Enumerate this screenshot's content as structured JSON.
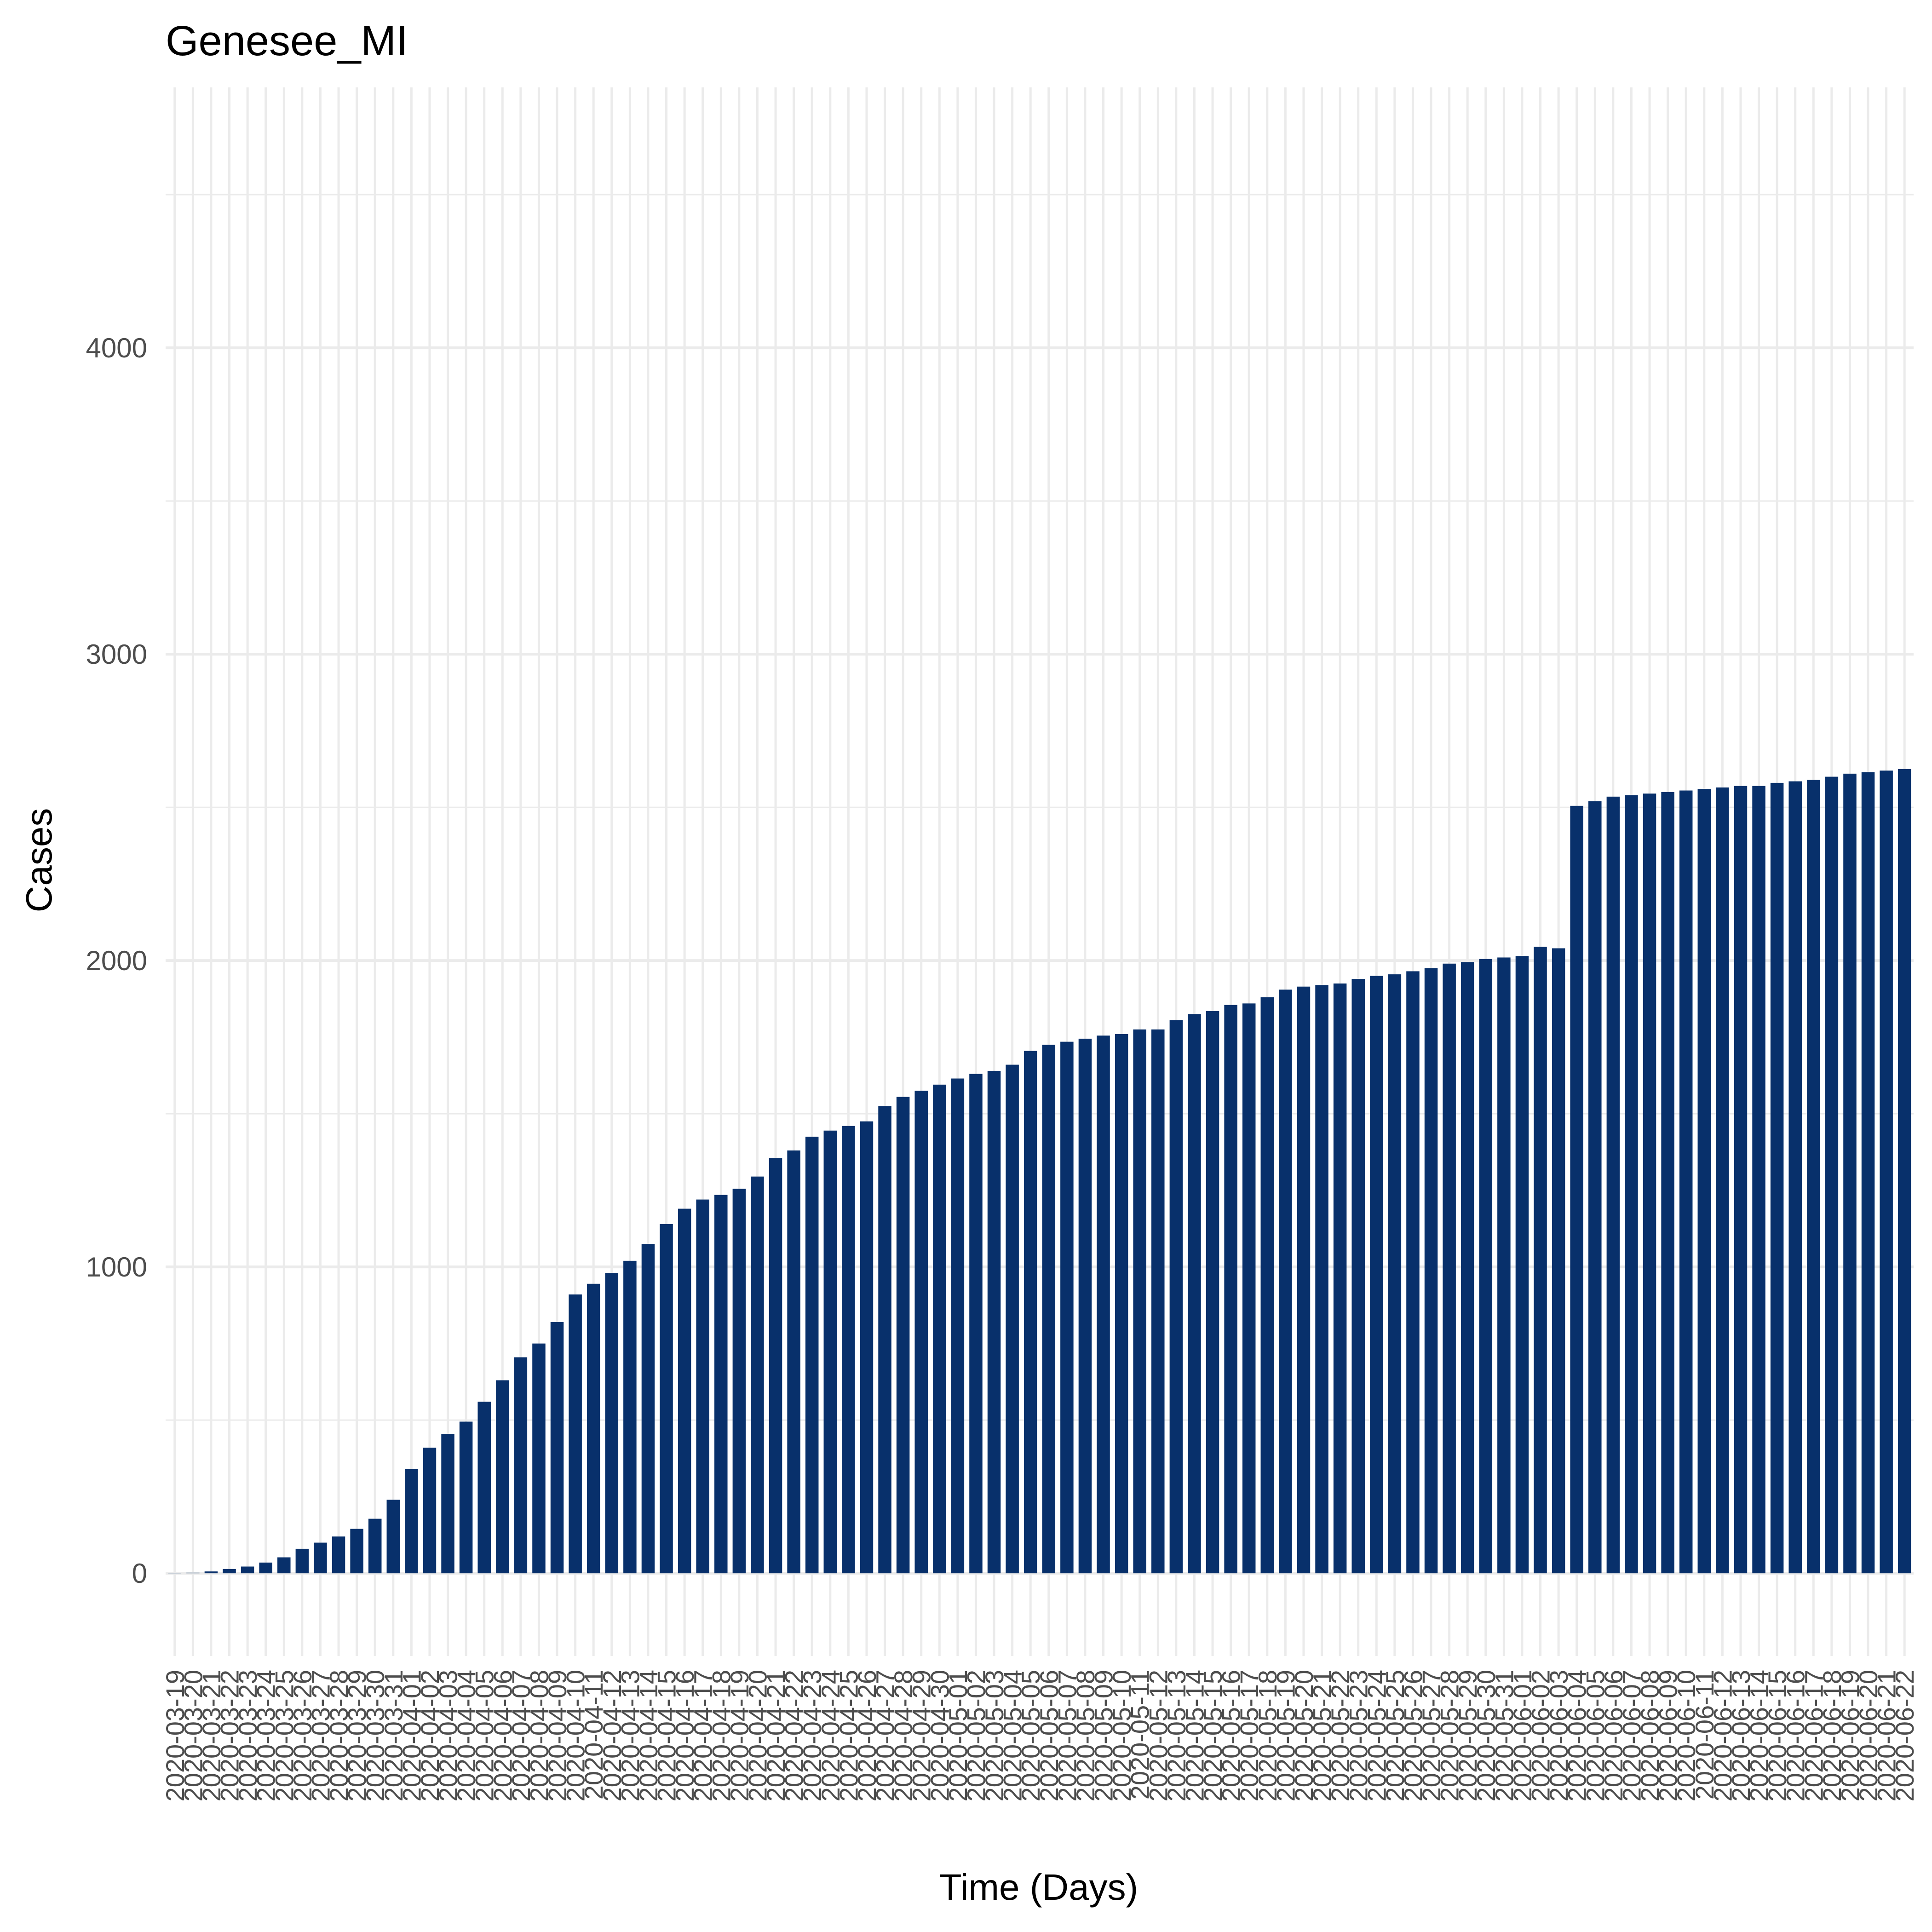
{
  "chart_data": {
    "type": "bar",
    "title": "Genesee_MI",
    "xlabel": "Time (Days)",
    "ylabel": "Cases",
    "ylim": [
      -270,
      4850
    ],
    "yticks": [
      0,
      1000,
      2000,
      3000,
      4000
    ],
    "grid": true,
    "bar_color": "#08306b",
    "background": "#ffffff",
    "grid_color": "#ebebeb",
    "categories": [
      "2020-03-19",
      "2020-03-20",
      "2020-03-21",
      "2020-03-22",
      "2020-03-23",
      "2020-03-24",
      "2020-03-25",
      "2020-03-26",
      "2020-03-27",
      "2020-03-28",
      "2020-03-29",
      "2020-03-30",
      "2020-03-31",
      "2020-04-01",
      "2020-04-02",
      "2020-04-03",
      "2020-04-04",
      "2020-04-05",
      "2020-04-06",
      "2020-04-07",
      "2020-04-08",
      "2020-04-09",
      "2020-04-10",
      "2020-04-11",
      "2020-04-12",
      "2020-04-13",
      "2020-04-14",
      "2020-04-15",
      "2020-04-16",
      "2020-04-17",
      "2020-04-18",
      "2020-04-19",
      "2020-04-20",
      "2020-04-21",
      "2020-04-22",
      "2020-04-23",
      "2020-04-24",
      "2020-04-25",
      "2020-04-26",
      "2020-04-27",
      "2020-04-28",
      "2020-04-29",
      "2020-04-30",
      "2020-05-01",
      "2020-05-02",
      "2020-05-03",
      "2020-05-04",
      "2020-05-05",
      "2020-05-06",
      "2020-05-07",
      "2020-05-08",
      "2020-05-09",
      "2020-05-10",
      "2020-05-11",
      "2020-05-12",
      "2020-05-13",
      "2020-05-14",
      "2020-05-15",
      "2020-05-16",
      "2020-05-17",
      "2020-05-18",
      "2020-05-19",
      "2020-05-20",
      "2020-05-21",
      "2020-05-22",
      "2020-05-23",
      "2020-05-24",
      "2020-05-25",
      "2020-05-26",
      "2020-05-27",
      "2020-05-28",
      "2020-05-29",
      "2020-05-30",
      "2020-05-31",
      "2020-06-01",
      "2020-06-02",
      "2020-06-03",
      "2020-06-04",
      "2020-06-05",
      "2020-06-06",
      "2020-06-07",
      "2020-06-08",
      "2020-06-09",
      "2020-06-10",
      "2020-06-11",
      "2020-06-12",
      "2020-06-13",
      "2020-06-14",
      "2020-06-15",
      "2020-06-16",
      "2020-06-17",
      "2020-06-18",
      "2020-06-19",
      "2020-06-20",
      "2020-06-21",
      "2020-06-22"
    ],
    "values": [
      1,
      2,
      6,
      14,
      22,
      35,
      52,
      80,
      100,
      120,
      145,
      178,
      240,
      340,
      410,
      455,
      495,
      560,
      630,
      705,
      750,
      820,
      910,
      945,
      980,
      1020,
      1075,
      1140,
      1190,
      1220,
      1235,
      1255,
      1295,
      1355,
      1380,
      1425,
      1445,
      1460,
      1475,
      1525,
      1555,
      1575,
      1595,
      1615,
      1630,
      1640,
      1660,
      1705,
      1725,
      1735,
      1745,
      1755,
      1760,
      1775,
      1775,
      1805,
      1825,
      1835,
      1855,
      1860,
      1880,
      1905,
      1915,
      1920,
      1925,
      1940,
      1950,
      1955,
      1965,
      1975,
      1990,
      1995,
      2005,
      2010,
      2015,
      2045,
      2040,
      2505,
      2520,
      2535,
      2540,
      2545,
      2550,
      2555,
      2560,
      2565,
      2570,
      2570,
      2580,
      2585,
      2590,
      2600,
      2610,
      2615,
      2620,
      2625
    ]
  }
}
